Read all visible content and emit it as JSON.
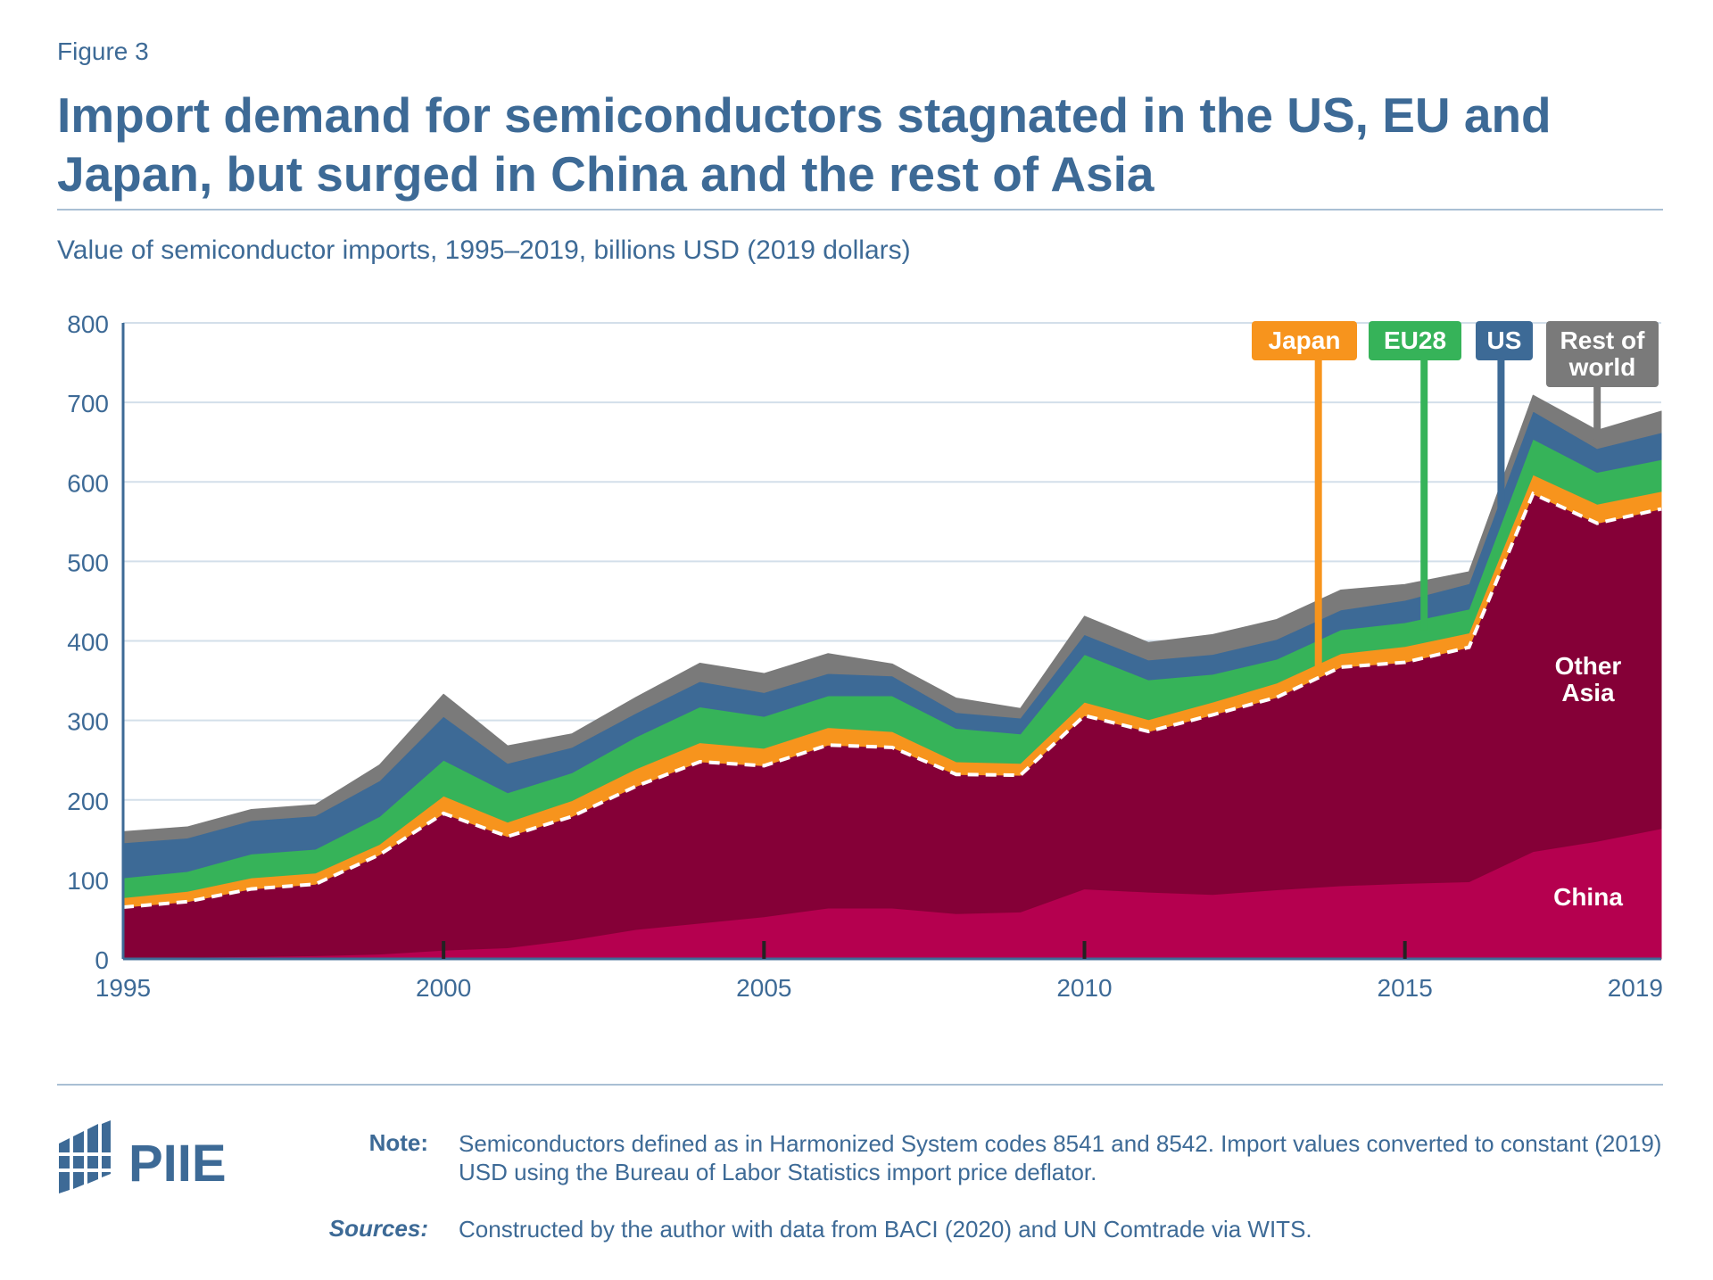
{
  "figure_label": "Figure 3",
  "title": "Import demand for semiconductors stagnated in the US, EU and Japan, but surged in China and the rest of Asia",
  "subtitle": "Value of semiconductor imports, 1995–2019, billions USD (2019 dollars)",
  "logo_text": "PIIE",
  "note_label": "Note:",
  "note_text": "Semiconductors defined as in Harmonized System codes 8541 and 8542. Import values converted to constant (2019) USD using the Bureau of Labor Statistics import price deflator.",
  "sources_label": "Sources:",
  "sources_text": "Constructed by the author with data from BACI (2020) and UN Comtrade via WITS.",
  "colors": {
    "text": "#3d6a96",
    "grid": "#d3dfea",
    "axis": "#3d6a96",
    "China": "#b5004f",
    "Other Asia": "#850037",
    "Japan": "#f7941d",
    "EU28": "#36b359",
    "US": "#3d6a96",
    "Rest of world": "#7a7a7a"
  },
  "chart_data": {
    "type": "area",
    "stacked": true,
    "x": [
      1995,
      1996,
      1997,
      1998,
      1999,
      2000,
      2001,
      2002,
      2003,
      2004,
      2005,
      2006,
      2007,
      2008,
      2009,
      2010,
      2011,
      2012,
      2013,
      2014,
      2015,
      2016,
      2017,
      2018,
      2019
    ],
    "x_ticks": [
      1995,
      2000,
      2005,
      2010,
      2015,
      2019
    ],
    "y_ticks": [
      0,
      100,
      200,
      300,
      400,
      500,
      600,
      700,
      800
    ],
    "ylim": [
      0,
      800
    ],
    "grid": true,
    "series": [
      {
        "name": "China",
        "label": "China",
        "values": [
          2,
          2,
          3,
          4,
          6,
          11,
          14,
          24,
          37,
          45,
          53,
          64,
          64,
          57,
          59,
          88,
          84,
          81,
          87,
          92,
          95,
          97,
          135,
          148,
          164
        ]
      },
      {
        "name": "Other Asia",
        "label": "Other\nAsia",
        "values": [
          63,
          70,
          85,
          90,
          125,
          172,
          140,
          155,
          180,
          203,
          190,
          205,
          202,
          175,
          172,
          218,
          202,
          226,
          242,
          275,
          278,
          295,
          450,
          400,
          402
        ]
      },
      {
        "name": "Japan",
        "label": "Japan",
        "values": [
          12,
          13,
          14,
          14,
          13,
          22,
          18,
          20,
          22,
          24,
          22,
          22,
          20,
          16,
          15,
          17,
          15,
          16,
          18,
          17,
          20,
          18,
          24,
          24,
          22
        ]
      },
      {
        "name": "EU28",
        "label": "EU28",
        "values": [
          25,
          25,
          30,
          30,
          35,
          45,
          37,
          35,
          40,
          45,
          40,
          40,
          45,
          42,
          37,
          60,
          50,
          35,
          30,
          30,
          30,
          30,
          45,
          40,
          40
        ]
      },
      {
        "name": "US",
        "label": "US",
        "values": [
          44,
          42,
          42,
          42,
          45,
          55,
          37,
          32,
          30,
          32,
          30,
          28,
          25,
          20,
          20,
          25,
          25,
          25,
          25,
          25,
          28,
          32,
          35,
          30,
          34
        ]
      },
      {
        "name": "Rest of world",
        "label": "Rest of\nworld",
        "values": [
          14,
          14,
          14,
          14,
          20,
          28,
          22,
          17,
          20,
          23,
          24,
          25,
          15,
          18,
          12,
          23,
          22,
          25,
          25,
          25,
          20,
          15,
          20,
          23,
          27
        ]
      }
    ]
  }
}
